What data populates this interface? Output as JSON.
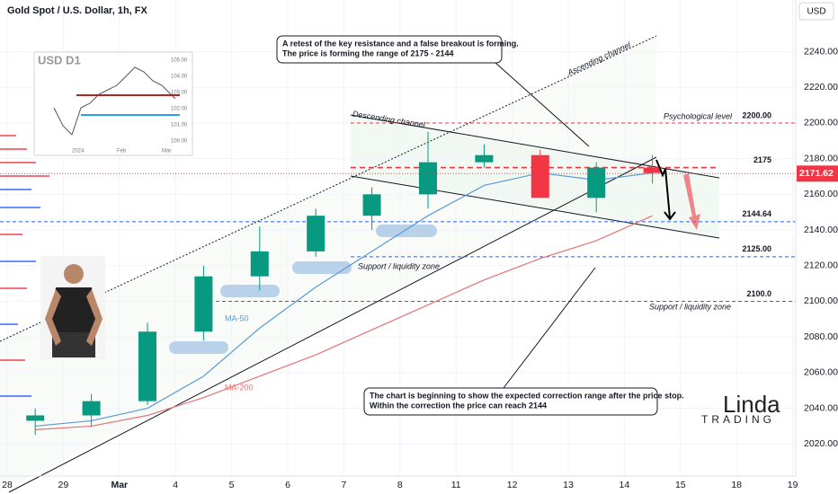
{
  "header": {
    "title": "Gold Spot / U.S. Dollar, 1h, FX",
    "currency": "USD"
  },
  "chart_data": {
    "type": "candlestick",
    "categories": [
      "28",
      "29",
      "Mar",
      "4",
      "5",
      "6",
      "7",
      "8",
      "11",
      "12",
      "13",
      "14",
      "15",
      "18",
      "19"
    ],
    "open": [
      2033,
      2036,
      2044,
      2083,
      2114,
      2128,
      2148,
      2160,
      2178,
      2182,
      2158,
      2175,
      null,
      null,
      null
    ],
    "high": [
      2040,
      2048,
      2088,
      2120,
      2142,
      2152,
      2164,
      2195,
      2188,
      2185,
      2178,
      2182,
      null,
      null,
      null
    ],
    "low": [
      2025,
      2030,
      2042,
      2078,
      2106,
      2125,
      2140,
      2152,
      2175,
      2160,
      2150,
      2166,
      null,
      null,
      null
    ],
    "close": [
      2036,
      2044,
      2083,
      2114,
      2128,
      2148,
      2160,
      2178,
      2182,
      2158,
      2175,
      2172,
      null,
      null,
      null
    ],
    "up_color": "#089981",
    "down_color": "#f23645",
    "series": [
      {
        "name": "MA-50",
        "color": "#5b9bd5",
        "values": [
          2030,
          2033,
          2040,
          2058,
          2085,
          2108,
          2128,
          2148,
          2165,
          2172,
          2168,
          2172,
          null,
          null,
          null
        ]
      },
      {
        "name": "MA-200",
        "color": "#e57373",
        "values": [
          2028,
          2030,
          2036,
          2046,
          2058,
          2070,
          2084,
          2098,
          2112,
          2124,
          2134,
          2148,
          null,
          null,
          null
        ]
      }
    ],
    "current_price": 2171.62,
    "levels": [
      {
        "value": 2200,
        "label": "2200.00",
        "color": "#f23645"
      },
      {
        "value": 2175,
        "color": "#f23645"
      },
      {
        "value": 2144.64,
        "label": "2144.64",
        "color": "#2962ff"
      },
      {
        "value": 2125,
        "label": "2125.00",
        "color": "#2962ff"
      },
      {
        "value": 2100,
        "label": "2100.0",
        "color": "#2962ff"
      }
    ],
    "labels": {
      "ascending": "Ascending channel",
      "descending": "Descending channel",
      "psychological": "Psychological level",
      "support_1": "Support / liquidity zone",
      "support_2": "Support / liquidity zone"
    },
    "ylim": [
      2002,
      2269
    ],
    "yticks": [
      {
        "value": 2020,
        "label": "2020.00"
      },
      {
        "value": 2040,
        "label": "2040.00"
      },
      {
        "value": 2060,
        "label": "2060.00"
      },
      {
        "value": 2080,
        "label": "2080.00"
      },
      {
        "value": 2100,
        "label": "2100.00"
      },
      {
        "value": 2120,
        "label": "2120.00"
      },
      {
        "value": 2140,
        "label": "2140.00"
      },
      {
        "value": 2160,
        "label": "2160.00"
      },
      {
        "value": 2180,
        "label": "2180.00"
      },
      {
        "value": 2200,
        "label": "2200.00"
      },
      {
        "value": 2220,
        "label": "2220.00"
      },
      {
        "value": 2240,
        "label": "2240.00"
      }
    ]
  },
  "notes": {
    "top": [
      "A retest of the key resistance and a false breakout is forming.",
      "The price is forming the range of 2175 - 2144"
    ],
    "bottom": [
      "The chart is beginning to show the expected correction range after the price stop.",
      "Within the correction the price can reach 2144"
    ]
  },
  "inset": {
    "title": "USD D1",
    "yticks": [
      "105.00",
      "104.00",
      "103.00",
      "102.00",
      "101.00",
      "100.00"
    ],
    "xticks": [
      "2024",
      "Feb",
      "Mar"
    ]
  },
  "logo": {
    "name": "Linda",
    "tagline": "TRADING"
  }
}
